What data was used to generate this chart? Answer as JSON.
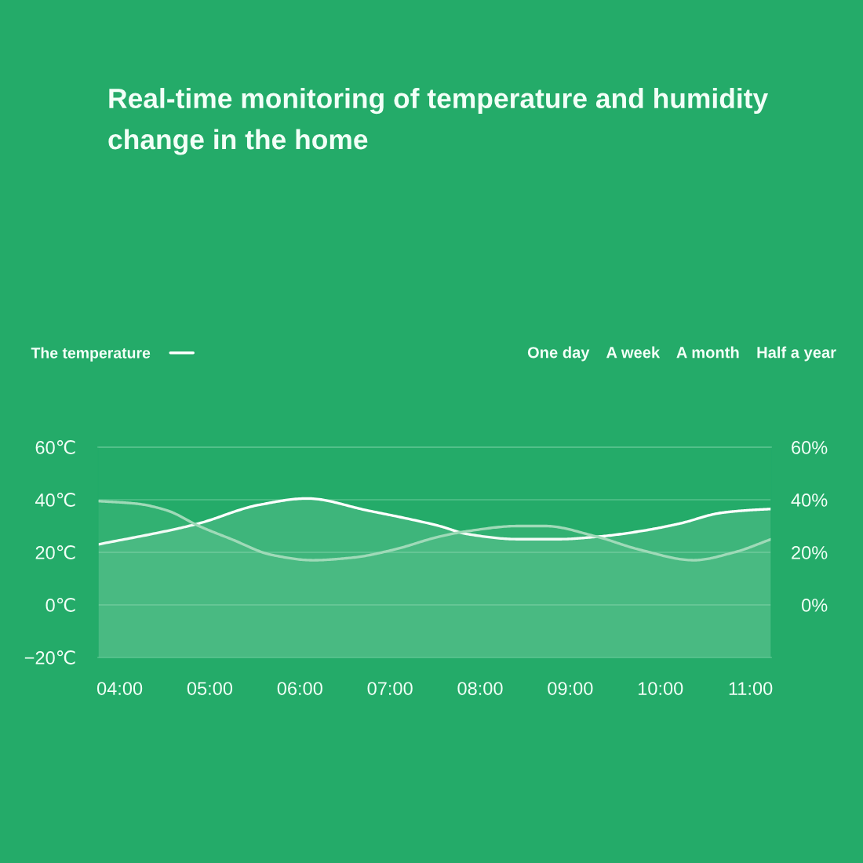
{
  "chart_data": {
    "type": "area",
    "title": "Real-time monitoring of temperature and humidity change in the home",
    "annotations": [
      "One day",
      "A week",
      "A month",
      "Half a year"
    ],
    "xlim": [
      3.76,
      11.23
    ],
    "xticks": [
      {
        "value": 4,
        "label": "04:00"
      },
      {
        "value": 5,
        "label": "05:00"
      },
      {
        "value": 6,
        "label": "06:00"
      },
      {
        "value": 7,
        "label": "07:00"
      },
      {
        "value": 8,
        "label": "08:00"
      },
      {
        "value": 9,
        "label": "09:00"
      },
      {
        "value": 10,
        "label": "10:00"
      },
      {
        "value": 11,
        "label": "11:00"
      }
    ],
    "ylim": [
      -20,
      60
    ],
    "yticks": [
      {
        "value": -20,
        "label": "−20℃"
      },
      {
        "value": 0,
        "label": "0℃"
      },
      {
        "value": 20,
        "label": "20℃"
      },
      {
        "value": 40,
        "label": "40℃"
      },
      {
        "value": 60,
        "label": "60℃"
      }
    ],
    "y2lim": [
      -20,
      60
    ],
    "y2ticks": [
      {
        "value": 0,
        "label": "0%"
      },
      {
        "value": 20,
        "label": "20%"
      },
      {
        "value": 40,
        "label": "40%"
      },
      {
        "value": 60,
        "label": "60%"
      }
    ],
    "grid": "y",
    "legend": "top left",
    "series": [
      {
        "name": "The temperature",
        "color": "#ffffff",
        "x": [
          3.76,
          4.64,
          4.88,
          5.54,
          6.08,
          6.74,
          7.55,
          7.85,
          8.42,
          8.87,
          9.32,
          9.77,
          10.22,
          10.67,
          10.97,
          11.23
        ],
        "values": [
          23,
          29,
          31,
          38,
          40.5,
          36,
          30,
          27,
          25,
          25,
          26,
          28,
          31,
          35,
          36,
          36.5
        ]
      },
      {
        "color": "#9fdab8",
        "axis": "y2",
        "x": [
          3.76,
          4.19,
          4.52,
          4.88,
          5.24,
          5.69,
          6.14,
          6.59,
          7.04,
          7.55,
          7.85,
          8.42,
          8.72,
          9.29,
          9.77,
          10.37,
          10.82,
          11.23
        ],
        "values": [
          39.5,
          38.5,
          36,
          30,
          25,
          19,
          17,
          18,
          21,
          26,
          28,
          30,
          30,
          26,
          21,
          17,
          20,
          25
        ]
      }
    ]
  }
}
